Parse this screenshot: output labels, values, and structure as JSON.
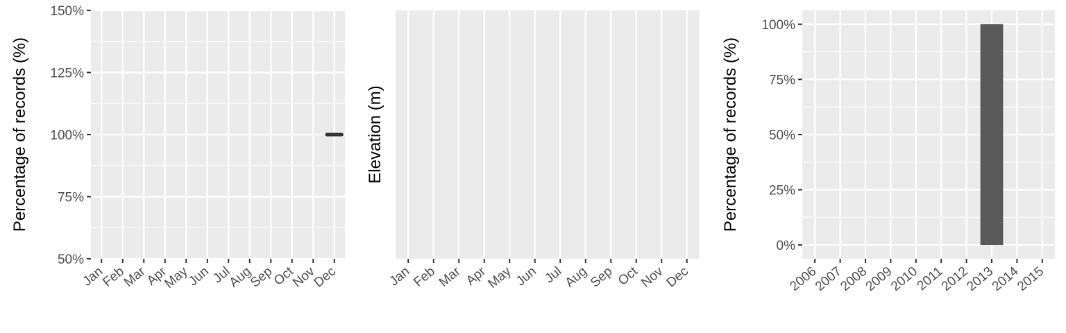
{
  "chart_data": [
    {
      "type": "line",
      "ylabel": "Percentage of records (%)",
      "xlabel": "",
      "categories": [
        "Jan",
        "Feb",
        "Mar",
        "Apr",
        "May",
        "Jun",
        "Jul",
        "Aug",
        "Sep",
        "Oct",
        "Nov",
        "Dec"
      ],
      "y_ticks": [
        50,
        75,
        100,
        125,
        150
      ],
      "y_tick_labels": [
        "50%",
        "75%",
        "100%",
        "125%",
        "150%"
      ],
      "ylim": [
        50,
        150
      ],
      "grid": true,
      "series": [
        {
          "category": "Dec",
          "value": 100
        }
      ],
      "colors": {
        "panel": "#ebebeb",
        "grid": "#ffffff",
        "mark": "#333333"
      }
    },
    {
      "type": "line",
      "ylabel": "Elevation (m)",
      "xlabel": "",
      "categories": [
        "Jan",
        "Feb",
        "Mar",
        "Apr",
        "May",
        "Jun",
        "Jul",
        "Aug",
        "Sep",
        "Oct",
        "Nov",
        "Dec"
      ],
      "y_ticks": [],
      "y_tick_labels": [],
      "grid": true,
      "series": [],
      "colors": {
        "panel": "#ebebeb",
        "grid": "#ffffff"
      }
    },
    {
      "type": "bar",
      "ylabel": "Percentage of records (%)",
      "xlabel": "",
      "categories": [
        "2006",
        "2007",
        "2008",
        "2009",
        "2010",
        "2011",
        "2012",
        "2013",
        "2014",
        "2015"
      ],
      "values": [
        0,
        0,
        0,
        0,
        0,
        0,
        0,
        100,
        0,
        0
      ],
      "y_ticks": [
        0,
        25,
        50,
        75,
        100
      ],
      "y_tick_labels": [
        "0%",
        "25%",
        "50%",
        "75%",
        "100%"
      ],
      "ylim": [
        -6.25,
        106.25
      ],
      "grid": true,
      "colors": {
        "panel": "#ebebeb",
        "grid": "#ffffff",
        "bar": "#595959"
      }
    }
  ]
}
